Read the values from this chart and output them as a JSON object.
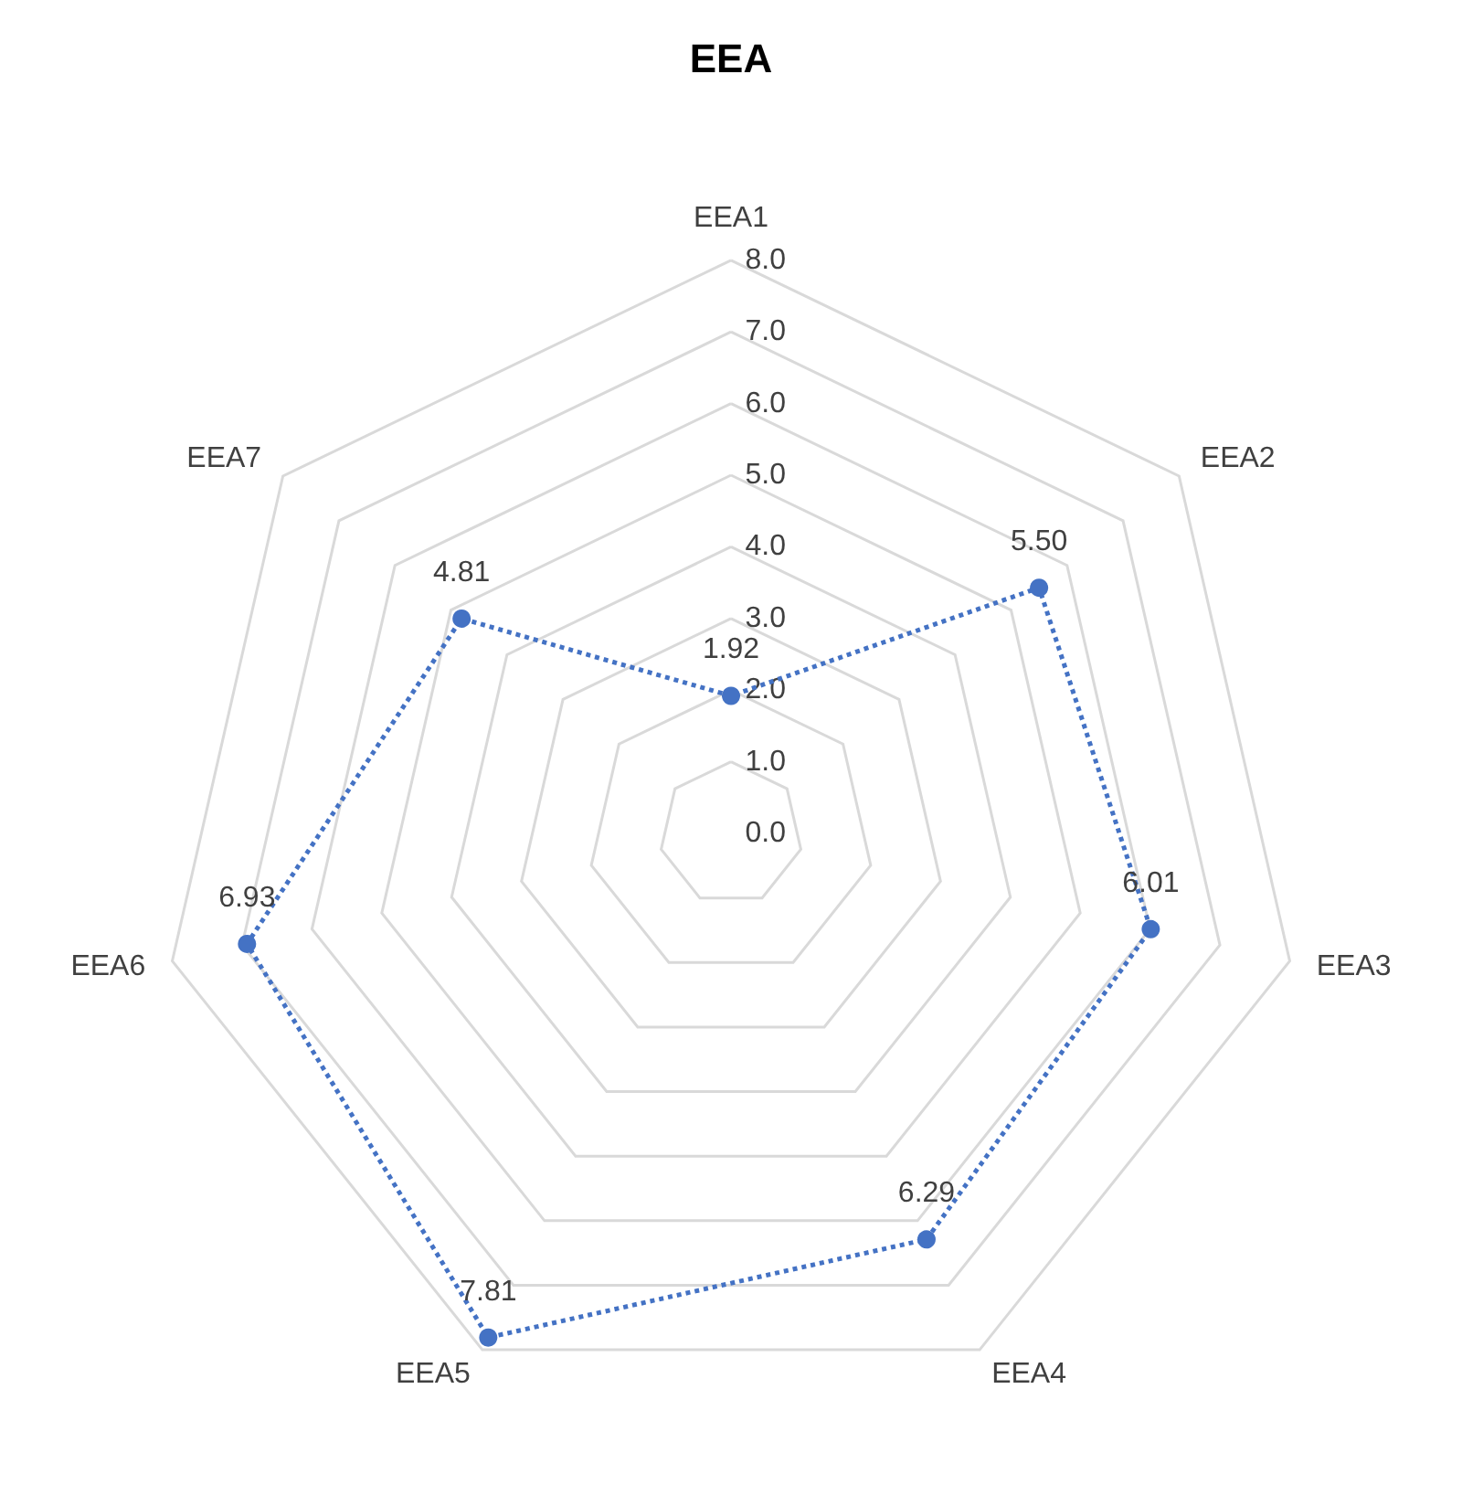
{
  "chart_data": {
    "type": "radar",
    "title": "EEA",
    "categories": [
      "EEA1",
      "EEA2",
      "EEA3",
      "EEA4",
      "EEA5",
      "EEA6",
      "EEA7"
    ],
    "series": [
      {
        "color": "#4472c4",
        "values": [
          1.92,
          5.5,
          6.01,
          6.29,
          7.81,
          6.93,
          4.81
        ],
        "value_labels": [
          "1.92",
          "5.50",
          "6.01",
          "6.29",
          "7.81",
          "6.93",
          "4.81"
        ]
      }
    ],
    "ylim": [
      0,
      8
    ],
    "yticks": [
      {
        "value": 0,
        "label": "0.0"
      },
      {
        "value": 1,
        "label": "1.0"
      },
      {
        "value": 2,
        "label": "2.0"
      },
      {
        "value": 3,
        "label": "3.0"
      },
      {
        "value": 4,
        "label": "4.0"
      },
      {
        "value": 5,
        "label": "5.0"
      },
      {
        "value": 6,
        "label": "6.0"
      },
      {
        "value": 7,
        "label": "7.0"
      },
      {
        "value": 8,
        "label": "8.0"
      }
    ],
    "grid": true,
    "marker": "circle",
    "line_style": "dotted"
  }
}
